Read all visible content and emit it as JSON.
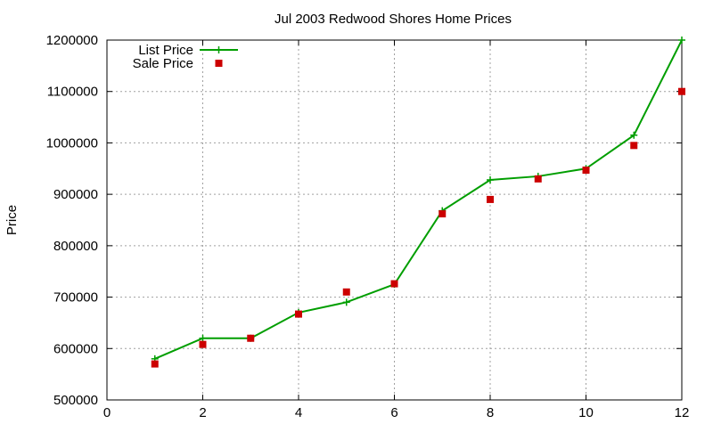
{
  "chart_data": {
    "type": "line",
    "title": "Jul 2003 Redwood Shores Home Prices",
    "xlabel": "",
    "ylabel": "Price",
    "xlim": [
      0,
      12
    ],
    "ylim": [
      500000,
      1200000
    ],
    "xticks": [
      0,
      2,
      4,
      6,
      8,
      10,
      12
    ],
    "yticks": [
      500000,
      600000,
      700000,
      800000,
      900000,
      1000000,
      1100000,
      1200000
    ],
    "grid": true,
    "legend_position": "top-left",
    "series": [
      {
        "name": "List Price",
        "style": "lines+crosses",
        "color": "#009e00",
        "x": [
          1,
          2,
          3,
          4,
          5,
          6,
          7,
          8,
          9,
          10,
          11,
          12
        ],
        "values": [
          580000,
          620000,
          620000,
          670000,
          690000,
          725000,
          868000,
          928000,
          935000,
          950000,
          1015000,
          1200000
        ]
      },
      {
        "name": "Sale Price",
        "style": "points",
        "color": "#cc0000",
        "x": [
          1,
          2,
          3,
          4,
          5,
          6,
          7,
          8,
          9,
          10,
          11,
          12
        ],
        "values": [
          570000,
          608000,
          620000,
          667000,
          710000,
          726000,
          862000,
          890000,
          930000,
          947000,
          995000,
          1100000
        ]
      }
    ]
  }
}
